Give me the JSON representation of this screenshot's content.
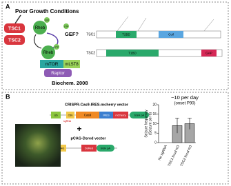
{
  "panel_a": {
    "label": "A",
    "condition": "Poor Growth Conditions",
    "nodes": {
      "tsc1": "TSC1",
      "tsc2": "TSC2",
      "rheb_gtp": "Rheb",
      "rheb_gdp": "Rheb",
      "gtp_1": "GTP",
      "gdp": "GDP",
      "gtp_2": "GTP",
      "gef": "GEF?",
      "mtor": "mTOR",
      "mlst8": "mLST8",
      "raptor": "Raptor"
    },
    "citation": "Biochem. 2008",
    "proteins": [
      {
        "name": "TSC1",
        "domains": [
          "T2BD",
          "Coil"
        ]
      },
      {
        "name": "TSC2",
        "domains": [
          "T1BD",
          "GAP"
        ]
      }
    ]
  },
  "panel_b": {
    "label": "B",
    "vector1": {
      "title": "CRISPR-Cas9-IRES-mcherry vector",
      "parts": [
        "U6",
        "CBh",
        "Cas9",
        "IRES",
        "mCherry",
        "bGH pA"
      ],
      "insert": "sgRNA"
    },
    "plus": "+",
    "vector2": {
      "title": "pCAG-Dsred vector",
      "parts": [
        "CAG",
        "DsRed",
        "bGH pA"
      ]
    }
  },
  "chart_data": {
    "type": "bar",
    "annotation": [
      "~10 per day",
      "(onset P90)"
    ],
    "ylabel": [
      "Seizure frequency",
      "(Seizure per d)"
    ],
    "categories": [
      "No sgRNA",
      "TSC1 focal KO",
      "TSC2 focal KO"
    ],
    "series": [
      {
        "name": "Seizure frequency",
        "color": "#a6a6a6",
        "values": [
          0,
          9,
          10
        ],
        "errors": [
          null,
          4,
          3
        ]
      }
    ],
    "ylim": [
      0,
      20
    ],
    "yticks": [
      0,
      5,
      10,
      15,
      20
    ]
  }
}
